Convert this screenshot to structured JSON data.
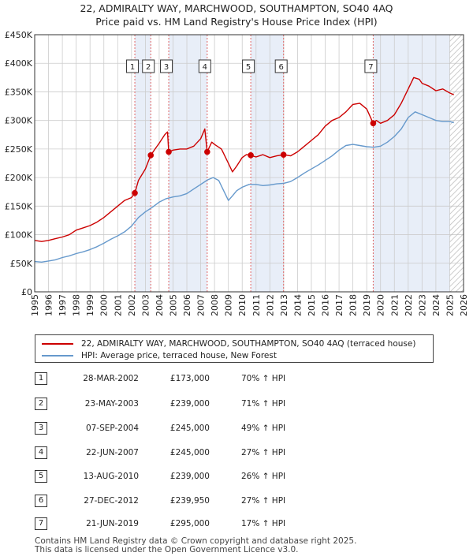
{
  "title_lines": [
    "22, ADMIRALTY WAY, MARCHWOOD, SOUTHAMPTON, SO40 4AQ",
    "Price paid vs. HM Land Registry's House Price Index (HPI)"
  ],
  "colors": {
    "price": "#cc0000",
    "hpi": "#6699cc",
    "shade": "#e8eef8",
    "grid": "#cccccc",
    "vline": "#e06666"
  },
  "chart_data": {
    "type": "line",
    "title": "Price paid vs. HM Land Registry's House Price Index (HPI)",
    "xlim": [
      1995,
      2026
    ],
    "ylim": [
      0,
      450000
    ],
    "y_ticks": [
      0,
      50000,
      100000,
      150000,
      200000,
      250000,
      300000,
      350000,
      400000,
      450000
    ],
    "y_tick_labels": [
      "£0",
      "£50K",
      "£100K",
      "£150K",
      "£200K",
      "£250K",
      "£300K",
      "£350K",
      "£400K",
      "£450K"
    ],
    "x_ticks": [
      1995,
      1996,
      1997,
      1998,
      1999,
      2000,
      2001,
      2002,
      2003,
      2004,
      2005,
      2006,
      2007,
      2008,
      2009,
      2010,
      2011,
      2012,
      2013,
      2014,
      2015,
      2016,
      2017,
      2018,
      2019,
      2020,
      2021,
      2022,
      2023,
      2024,
      2025,
      2026
    ],
    "x_tick_labels": [
      "1995",
      "1996",
      "1997",
      "1998",
      "1999",
      "2000",
      "2001",
      "2002",
      "2003",
      "2004",
      "2005",
      "2006",
      "2007",
      "2008",
      "2009",
      "2010",
      "2011",
      "2012",
      "2013",
      "2014",
      "2015",
      "2016",
      "2017",
      "2018",
      "2019",
      "2020",
      "2021",
      "2022",
      "2023",
      "2024",
      "2025",
      "2026"
    ],
    "hatched_after": 2025.0,
    "series": [
      {
        "name": "22, ADMIRALTY WAY, MARCHWOOD, SOUTHAMPTON, SO40 4AQ (terraced house)",
        "color": "#cc0000",
        "x": [
          1995.0,
          1995.5,
          1996.0,
          1996.5,
          1997.0,
          1997.5,
          1998.0,
          1998.5,
          1999.0,
          1999.5,
          2000.0,
          2000.5,
          2001.0,
          2001.5,
          2002.0,
          2002.24,
          2002.5,
          2003.0,
          2003.39,
          2003.7,
          2004.0,
          2004.4,
          2004.6,
          2004.69,
          2005.0,
          2005.5,
          2006.0,
          2006.5,
          2007.0,
          2007.3,
          2007.47,
          2007.8,
          2008.0,
          2008.5,
          2009.0,
          2009.3,
          2009.6,
          2010.0,
          2010.3,
          2010.62,
          2011.0,
          2011.5,
          2012.0,
          2012.5,
          2012.99,
          2013.5,
          2014.0,
          2014.5,
          2015.0,
          2015.5,
          2016.0,
          2016.5,
          2017.0,
          2017.5,
          2018.0,
          2018.5,
          2019.0,
          2019.47,
          2019.7,
          2020.0,
          2020.5,
          2021.0,
          2021.5,
          2022.0,
          2022.4,
          2022.8,
          2023.0,
          2023.5,
          2024.0,
          2024.5,
          2025.0,
          2025.3
        ],
        "y": [
          90000,
          88000,
          90000,
          93000,
          96000,
          100000,
          108000,
          112000,
          116000,
          122000,
          130000,
          140000,
          150000,
          160000,
          165000,
          173000,
          195000,
          215000,
          239000,
          250000,
          260000,
          275000,
          280000,
          245000,
          248000,
          250000,
          250000,
          255000,
          268000,
          285000,
          245000,
          262000,
          258000,
          250000,
          225000,
          210000,
          220000,
          235000,
          240000,
          239000,
          236000,
          240000,
          235000,
          238000,
          239950,
          238000,
          245000,
          255000,
          265000,
          275000,
          290000,
          300000,
          305000,
          315000,
          328000,
          330000,
          320000,
          295000,
          300000,
          295000,
          300000,
          310000,
          330000,
          355000,
          375000,
          372000,
          365000,
          360000,
          352000,
          355000,
          348000,
          345000
        ]
      },
      {
        "name": "HPI: Average price, terraced house, New Forest",
        "color": "#6699cc",
        "x": [
          1995.0,
          1995.5,
          1996.0,
          1996.5,
          1997.0,
          1997.5,
          1998.0,
          1998.5,
          1999.0,
          1999.5,
          2000.0,
          2000.5,
          2001.0,
          2001.5,
          2002.0,
          2002.5,
          2003.0,
          2003.5,
          2004.0,
          2004.5,
          2005.0,
          2005.5,
          2006.0,
          2006.5,
          2007.0,
          2007.5,
          2007.9,
          2008.3,
          2008.7,
          2009.0,
          2009.3,
          2009.6,
          2010.0,
          2010.5,
          2011.0,
          2011.5,
          2012.0,
          2012.5,
          2013.0,
          2013.5,
          2014.0,
          2014.5,
          2015.0,
          2015.5,
          2016.0,
          2016.5,
          2017.0,
          2017.5,
          2018.0,
          2018.5,
          2019.0,
          2019.5,
          2020.0,
          2020.5,
          2021.0,
          2021.5,
          2022.0,
          2022.5,
          2023.0,
          2023.5,
          2024.0,
          2024.5,
          2025.0,
          2025.3
        ],
        "y": [
          53000,
          52000,
          54000,
          56000,
          60000,
          63000,
          67000,
          70000,
          74000,
          79000,
          85000,
          92000,
          98000,
          105000,
          115000,
          130000,
          140000,
          148000,
          157000,
          163000,
          166000,
          168000,
          172000,
          180000,
          188000,
          196000,
          200000,
          195000,
          175000,
          160000,
          168000,
          177000,
          183000,
          188000,
          188000,
          186000,
          187000,
          189000,
          190000,
          193000,
          200000,
          208000,
          215000,
          222000,
          230000,
          238000,
          248000,
          256000,
          258000,
          256000,
          254000,
          253000,
          255000,
          262000,
          272000,
          285000,
          305000,
          315000,
          310000,
          305000,
          300000,
          298000,
          298000,
          296000
        ]
      }
    ],
    "transactions": [
      {
        "label": "1",
        "x": 2002.24,
        "y": 173000
      },
      {
        "label": "2",
        "x": 2003.39,
        "y": 239000
      },
      {
        "label": "3",
        "x": 2004.69,
        "y": 245000
      },
      {
        "label": "4",
        "x": 2007.47,
        "y": 245000
      },
      {
        "label": "5",
        "x": 2010.62,
        "y": 239000
      },
      {
        "label": "6",
        "x": 2012.99,
        "y": 239950
      },
      {
        "label": "7",
        "x": 2019.47,
        "y": 295000
      }
    ],
    "shaded_spans": [
      [
        2002.24,
        2003.39
      ],
      [
        2004.69,
        2007.47
      ],
      [
        2010.62,
        2012.99
      ],
      [
        2019.47,
        2025.0
      ]
    ]
  },
  "legend": {
    "price_label": "22, ADMIRALTY WAY, MARCHWOOD, SOUTHAMPTON, SO40 4AQ (terraced house)",
    "hpi_label": "HPI: Average price, terraced house, New Forest"
  },
  "table": [
    {
      "num": "1",
      "date": "28-MAR-2002",
      "price": "£173,000",
      "hpi": "70% ↑ HPI"
    },
    {
      "num": "2",
      "date": "23-MAY-2003",
      "price": "£239,000",
      "hpi": "71% ↑ HPI"
    },
    {
      "num": "3",
      "date": "07-SEP-2004",
      "price": "£245,000",
      "hpi": "49% ↑ HPI"
    },
    {
      "num": "4",
      "date": "22-JUN-2007",
      "price": "£245,000",
      "hpi": "27% ↑ HPI"
    },
    {
      "num": "5",
      "date": "13-AUG-2010",
      "price": "£239,000",
      "hpi": "26% ↑ HPI"
    },
    {
      "num": "6",
      "date": "27-DEC-2012",
      "price": "£239,950",
      "hpi": "27% ↑ HPI"
    },
    {
      "num": "7",
      "date": "21-JUN-2019",
      "price": "£295,000",
      "hpi": "17% ↑ HPI"
    }
  ],
  "footer": [
    "Contains HM Land Registry data © Crown copyright and database right 2025.",
    "This data is licensed under the Open Government Licence v3.0."
  ]
}
